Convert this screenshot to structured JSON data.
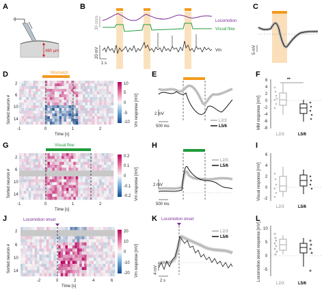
{
  "panels": {
    "A": {
      "label": "A",
      "depth": "480 µm"
    },
    "B": {
      "label": "B",
      "legend": {
        "locomotion": "Locomotion",
        "visual_flow": "Visual flow",
        "vm": "Vm"
      },
      "scale": {
        "speed": "30 cm/s",
        "voltage": "20 mV",
        "time": "1 s"
      },
      "colors": {
        "locomotion": "#7a2a96",
        "visual_flow": "#1f9a3a",
        "mismatch": "#f39a1e"
      }
    },
    "C": {
      "label": "C",
      "scale": "5 mV"
    },
    "D": {
      "label": "D",
      "title": "Mismatch",
      "ylabel": "Sorted neuron #",
      "xlabel": "Time [s]",
      "yticks": [
        "2",
        "6",
        "10",
        "14"
      ],
      "xticks": [
        "-1",
        "0",
        "1",
        "2"
      ],
      "cbar_ticks": [
        "10",
        "5",
        "0",
        "-5",
        "-10"
      ],
      "cbar_label": "Vm response [mV]"
    },
    "E": {
      "label": "E",
      "scale_v": "2 mV",
      "scale_t": "500 ms",
      "legend": [
        "L2/3",
        "L5/6"
      ]
    },
    "F": {
      "label": "F",
      "ylabel": "MM response [mV]",
      "yticks": [
        "6",
        "4",
        "2",
        "0",
        "-2",
        "-4",
        "-6",
        "-8"
      ],
      "xticks": [
        "L2/3",
        "L5/6"
      ],
      "sig": "**"
    },
    "G": {
      "label": "G",
      "title": "Visual flow",
      "ylabel": "Sorted neuron #",
      "xlabel": "Time [s]",
      "yticks": [
        "2",
        "6",
        "10",
        "14"
      ],
      "xticks": [
        "-1",
        "0",
        "1",
        "2"
      ],
      "cbar_ticks": [
        "0.2",
        "0.1",
        "0",
        "-0.1",
        "-0.2"
      ],
      "cbar_label": "Vm response [mV]"
    },
    "H": {
      "label": "H",
      "scale_v": "2 mV",
      "scale_t": "500 ms",
      "legend": [
        "L2/3",
        "L5/6"
      ]
    },
    "I": {
      "label": "I",
      "ylabel": "Visual response [mV]",
      "yticks": [
        "6",
        "4",
        "2",
        "0",
        "-2"
      ],
      "xticks": [
        "L2/3",
        "L5/6"
      ]
    },
    "J": {
      "label": "J",
      "title": "Locomotion onset",
      "ylabel": "Sorted neuron #",
      "xlabel": "Time [s]",
      "yticks": [
        "2",
        "6",
        "10",
        "14"
      ],
      "xticks": [
        "-2",
        "0",
        "2",
        "4",
        "6"
      ],
      "cbar_ticks": [
        "20",
        "10",
        "0",
        "-10",
        "-20"
      ],
      "cbar_label": "Vm response [mV]"
    },
    "K": {
      "label": "K",
      "title": "Locomotion onset",
      "scale_v": "4 mV",
      "scale_t": "2 s",
      "legend": [
        "L2/3",
        "L5/6"
      ]
    },
    "L": {
      "label": "L",
      "ylabel": "Locomotion onset response [mV]",
      "yticks": [
        "10",
        "5",
        "0",
        "-5"
      ],
      "xticks": [
        "L2/3",
        "L5/6"
      ]
    }
  }
}
